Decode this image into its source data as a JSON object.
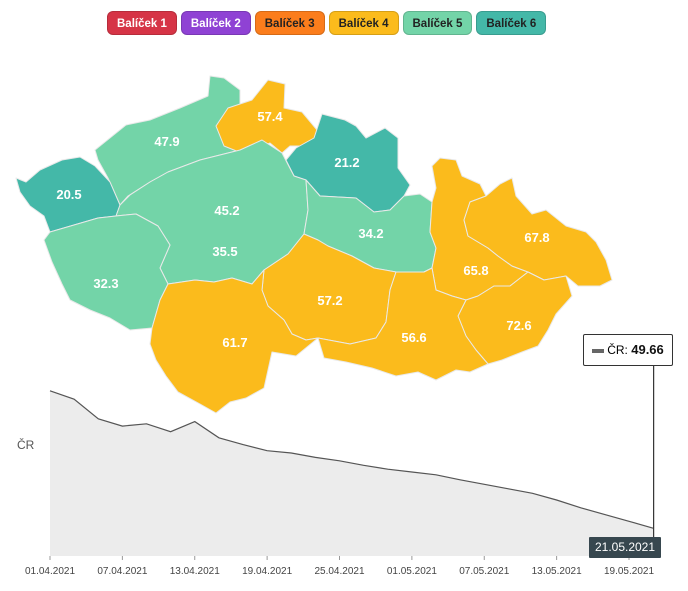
{
  "legend": [
    {
      "label": "Balíček 1",
      "color": "#d63446"
    },
    {
      "label": "Balíček 2",
      "color": "#8f42d4"
    },
    {
      "label": "Balíček 3",
      "color": "#fb7d1c"
    },
    {
      "label": "Balíček 4",
      "color": "#fbbb1c"
    },
    {
      "label": "Balíček 5",
      "color": "#73d4a8"
    },
    {
      "label": "Balíček 6",
      "color": "#44b8a8"
    }
  ],
  "regions": [
    {
      "id": "karlovarsky",
      "value": "20.5",
      "package": 6
    },
    {
      "id": "ustecky",
      "value": "47.9",
      "package": 5
    },
    {
      "id": "liberecky",
      "value": "57.4",
      "package": 4
    },
    {
      "id": "kralovehradecky",
      "value": "21.2",
      "package": 6
    },
    {
      "id": "praha",
      "value": "45.2",
      "package": 5
    },
    {
      "id": "stredocesky",
      "value": "35.5",
      "package": 5
    },
    {
      "id": "plzensky",
      "value": "32.3",
      "package": 5
    },
    {
      "id": "pardubicky",
      "value": "34.2",
      "package": 5
    },
    {
      "id": "olomoucky",
      "value": "65.8",
      "package": 4
    },
    {
      "id": "moravskoslezsky",
      "value": "67.8",
      "package": 4
    },
    {
      "id": "vysocina",
      "value": "57.2",
      "package": 4
    },
    {
      "id": "jihocesky",
      "value": "61.7",
      "package": 4
    },
    {
      "id": "jihomoravsky",
      "value": "56.6",
      "package": 4
    },
    {
      "id": "zlinsky",
      "value": "72.6",
      "package": 4
    }
  ],
  "chart_data": {
    "type": "area",
    "series_label": "ČR",
    "x_ticks": [
      "01.04.2021",
      "07.04.2021",
      "13.04.2021",
      "19.04.2021",
      "25.04.2021",
      "01.05.2021",
      "07.05.2021",
      "13.05.2021",
      "19.05.2021"
    ],
    "x": [
      "01.04.2021",
      "03.04.2021",
      "05.04.2021",
      "07.04.2021",
      "09.04.2021",
      "11.04.2021",
      "13.04.2021",
      "15.04.2021",
      "17.04.2021",
      "19.04.2021",
      "21.04.2021",
      "23.04.2021",
      "25.04.2021",
      "27.04.2021",
      "29.04.2021",
      "01.05.2021",
      "03.05.2021",
      "05.05.2021",
      "07.05.2021",
      "09.05.2021",
      "11.05.2021",
      "13.05.2021",
      "15.05.2021",
      "17.05.2021",
      "19.05.2021",
      "21.05.2021"
    ],
    "y": [
      295,
      280,
      245,
      232,
      236,
      222,
      240,
      211,
      199,
      188,
      184,
      176,
      170,
      162,
      155,
      150,
      145,
      136,
      128,
      120,
      112,
      100,
      86,
      74,
      62,
      49.66
    ],
    "hover": {
      "date": "21.05.2021",
      "label": "ČR:",
      "value": "49.66"
    },
    "colors": {
      "line": "#555555",
      "fill": "#ececec"
    }
  }
}
